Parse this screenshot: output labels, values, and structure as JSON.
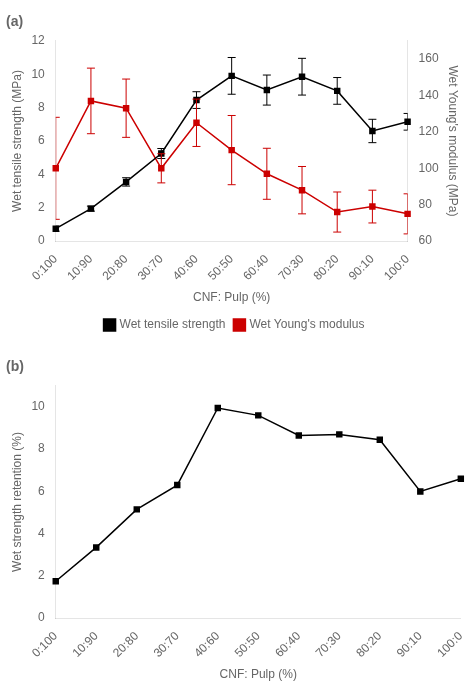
{
  "chart_data": [
    {
      "type": "line",
      "title": "(a)",
      "categories": [
        "0:100",
        "10:90",
        "20:80",
        "30:70",
        "40:60",
        "50:50",
        "60:40",
        "70:30",
        "80:20",
        "90:10",
        "100:0"
      ],
      "series": [
        {
          "name": "Wet tensile strength",
          "color": "#000000",
          "marker": "square",
          "values": [
            0.75,
            1.95,
            3.55,
            5.25,
            8.45,
            9.9,
            9.05,
            9.85,
            9.0,
            6.6,
            7.15
          ],
          "errors": [
            0.15,
            0.15,
            0.25,
            0.3,
            0.5,
            1.1,
            0.9,
            1.1,
            0.8,
            0.7,
            0.5
          ]
        },
        {
          "name": "Wet Young's modulus",
          "color": "#cc0000",
          "marker": "square",
          "axis": "y2",
          "values": [
            100,
            137,
            133,
            100,
            125,
            110,
            97,
            88,
            76,
            79,
            75
          ],
          "errors": [
            28,
            18,
            16,
            8,
            13,
            19,
            14,
            13,
            11,
            9,
            11
          ]
        }
      ],
      "xlabel": "CNF: Pulp (%)",
      "ylabel": "Wet tensile strength (MPa)",
      "y2label": "Wet Young's modulus (MPa)",
      "ylim": [
        0,
        12
      ],
      "yticks": [
        0,
        2,
        4,
        6,
        8,
        10,
        12
      ],
      "y2lim": [
        60,
        170
      ],
      "y2ticks": [
        60,
        80,
        100,
        120,
        140,
        160
      ],
      "grid": false,
      "legend": "bottom"
    },
    {
      "type": "line",
      "title": "(b)",
      "categories": [
        "0:100",
        "10:90",
        "20:80",
        "30:70",
        "40:60",
        "50:50",
        "60:40",
        "70:30",
        "80:20",
        "90:10",
        "100:0"
      ],
      "values": [
        1.75,
        3.35,
        5.15,
        6.3,
        9.95,
        9.6,
        8.65,
        8.7,
        8.45,
        6.0,
        6.6
      ],
      "color": "#000000",
      "marker": "square",
      "xlabel": "CNF: Pulp (%)",
      "ylabel": "Wet strength retention (%)",
      "ylim": [
        0,
        11
      ],
      "yticks": [
        0,
        2,
        4,
        6,
        8,
        10
      ],
      "grid": false
    }
  ]
}
